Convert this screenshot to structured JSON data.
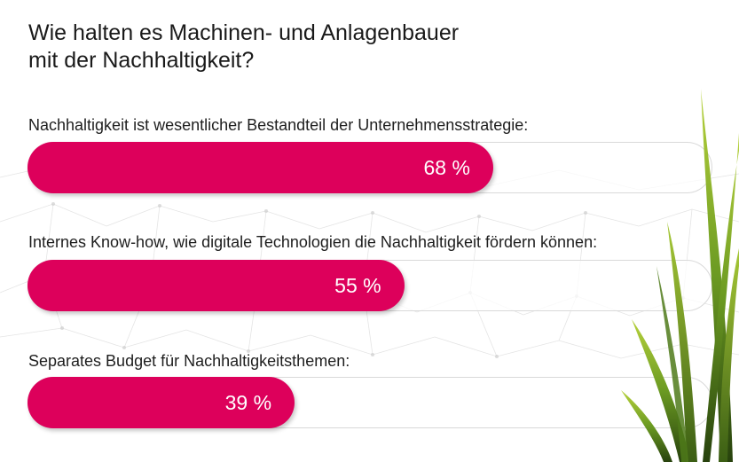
{
  "title_lines": [
    "Wie halten es Machinen- und Anlagenbauer",
    "mit der Nachhaltigkeit?"
  ],
  "chart_data": {
    "type": "bar",
    "orientation": "horizontal",
    "unit": "%",
    "xlim": [
      0,
      100
    ],
    "grid": false,
    "categories": [
      "Nachhaltigkeit ist wesentlicher Bestandteil der Unternehmensstrategie:",
      "Internes Know-how, wie digitale Technologien die Nachhaltigkeit fördern können:",
      "Separates Budget für Nachhaltigkeitsthemen:"
    ],
    "values": [
      68,
      55,
      39
    ],
    "value_labels": [
      "68 %",
      "55 %",
      "39 %"
    ]
  },
  "colors": {
    "bar": "#dd005b",
    "track_border": "#d9d9d9",
    "value_text": "#ffffff",
    "title": "#1a1a1a"
  },
  "decoration": {
    "background": "network-lines",
    "right_edge": "grass-plant"
  }
}
